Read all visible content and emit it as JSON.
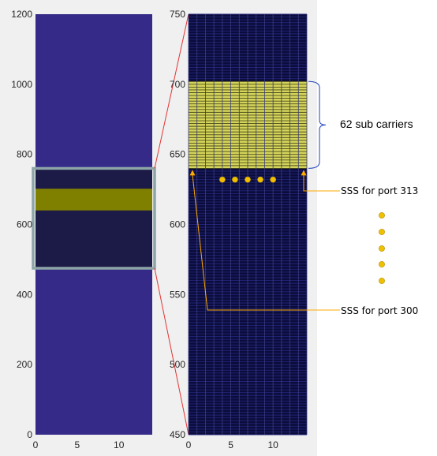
{
  "colors": {
    "figure_bg": "#f0f0f0",
    "left_fill": "#352a87",
    "dark_fill": "#1c1a47",
    "band_fill": "#808000",
    "grid_bg": "#0b0c3a",
    "grid_line_h": "#22247a",
    "grid_line_v": "#3a3c80",
    "yellow_grid_bg": "#d4d45a",
    "yellow_grid_line": "#4a4a1a",
    "zoom_box": "#8ea5a8",
    "zoom_lines": "#e53333",
    "arrow": "#ffaa00",
    "brace": "#1f3fbf",
    "dot": "#f0c000"
  },
  "chart_data": [
    {
      "type": "heatmap",
      "title": "",
      "xlabel": "",
      "ylabel": "",
      "xlim": [
        0,
        14
      ],
      "ylim": [
        0,
        1200
      ],
      "xticks": [
        "0",
        "5",
        "10"
      ],
      "xtick_values": [
        0,
        5,
        10
      ],
      "yticks": [
        "0",
        "200",
        "400",
        "600",
        "800",
        "1000",
        "1200"
      ],
      "ytick_values": [
        0,
        200,
        400,
        600,
        800,
        1000,
        1200
      ],
      "regions": [
        {
          "name": "background",
          "y_range": [
            0,
            1200
          ],
          "color": "#352a87"
        },
        {
          "name": "dark",
          "y_range": [
            475,
            760
          ],
          "color": "#1c1a47"
        },
        {
          "name": "band",
          "y_range": [
            640,
            702
          ],
          "color": "#808000"
        }
      ],
      "zoom_box_y_range": [
        475,
        760
      ]
    },
    {
      "type": "heatmap",
      "title": "",
      "xlabel": "",
      "ylabel": "",
      "xlim": [
        0,
        14
      ],
      "ylim": [
        450,
        750
      ],
      "xticks": [
        "0",
        "5",
        "10"
      ],
      "xtick_values": [
        0,
        5,
        10
      ],
      "yticks": [
        "450",
        "500",
        "550",
        "600",
        "650",
        "700",
        "750"
      ],
      "ytick_values": [
        450,
        500,
        550,
        600,
        650,
        700,
        750
      ],
      "cell_rows": 300,
      "cell_cols": 14,
      "highlight": {
        "y_range": [
          640,
          702
        ],
        "color": "#d4d45a"
      },
      "row_dots_x": [
        4,
        5.5,
        7,
        8.5,
        10
      ],
      "row_dots_y": 632
    }
  ],
  "annotations": {
    "brace_label": "62 sub carriers",
    "sss_313_label": "SSS for port 313",
    "sss_300_label": "SSS for port 300"
  }
}
